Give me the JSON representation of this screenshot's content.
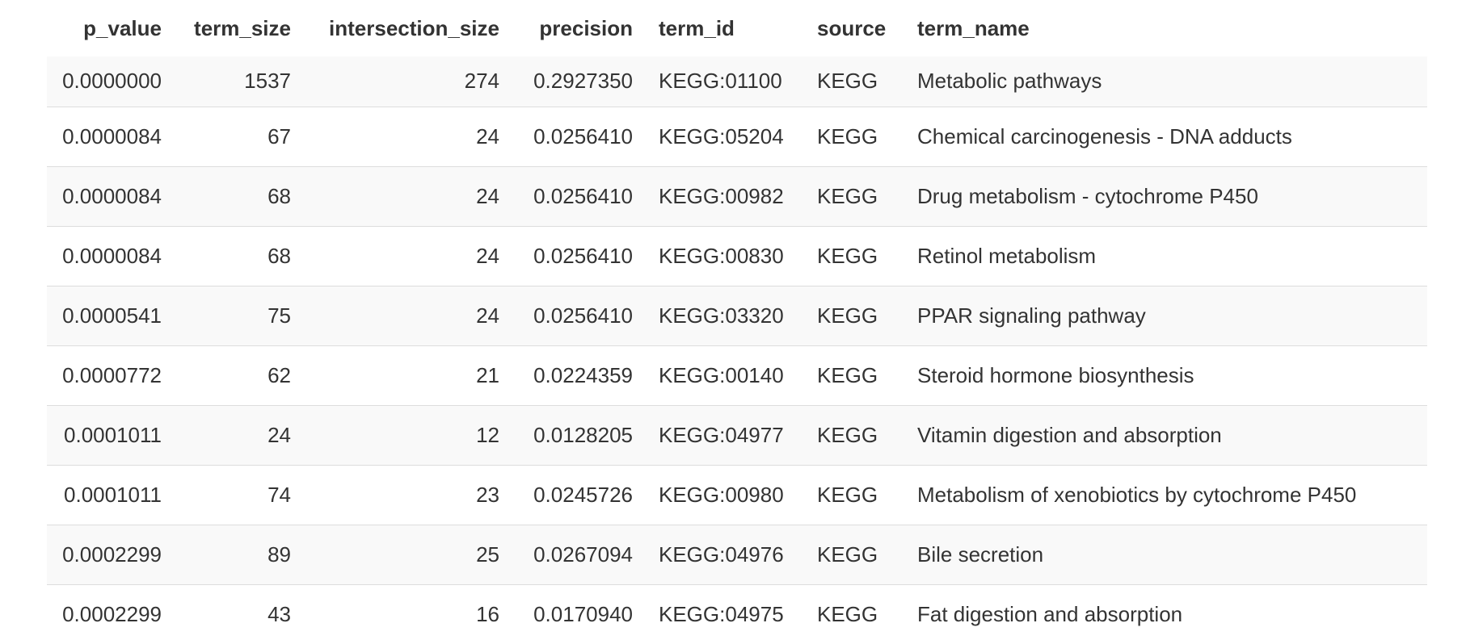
{
  "table": {
    "headers": [
      "p_value",
      "term_size",
      "intersection_size",
      "precision",
      "term_id",
      "source",
      "term_name"
    ],
    "rows": [
      [
        "0.0000000",
        "1537",
        "274",
        "0.2927350",
        "KEGG:01100",
        "KEGG",
        "Metabolic pathways"
      ],
      [
        "0.0000084",
        "67",
        "24",
        "0.0256410",
        "KEGG:05204",
        "KEGG",
        "Chemical carcinogenesis - DNA adducts"
      ],
      [
        "0.0000084",
        "68",
        "24",
        "0.0256410",
        "KEGG:00982",
        "KEGG",
        "Drug metabolism - cytochrome P450"
      ],
      [
        "0.0000084",
        "68",
        "24",
        "0.0256410",
        "KEGG:00830",
        "KEGG",
        "Retinol metabolism"
      ],
      [
        "0.0000541",
        "75",
        "24",
        "0.0256410",
        "KEGG:03320",
        "KEGG",
        "PPAR signaling pathway"
      ],
      [
        "0.0000772",
        "62",
        "21",
        "0.0224359",
        "KEGG:00140",
        "KEGG",
        "Steroid hormone biosynthesis"
      ],
      [
        "0.0001011",
        "24",
        "12",
        "0.0128205",
        "KEGG:04977",
        "KEGG",
        "Vitamin digestion and absorption"
      ],
      [
        "0.0001011",
        "74",
        "23",
        "0.0245726",
        "KEGG:00980",
        "KEGG",
        "Metabolism of xenobiotics by cytochrome P450"
      ],
      [
        "0.0002299",
        "89",
        "25",
        "0.0267094",
        "KEGG:04976",
        "KEGG",
        "Bile secretion"
      ],
      [
        "0.0002299",
        "43",
        "16",
        "0.0170940",
        "KEGG:04975",
        "KEGG",
        "Fat digestion and absorption"
      ]
    ]
  }
}
